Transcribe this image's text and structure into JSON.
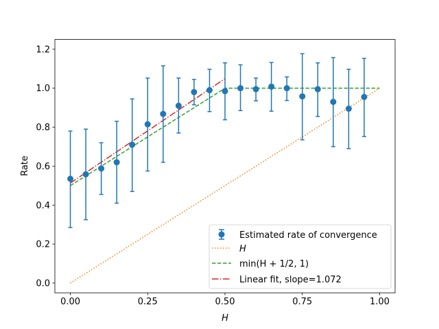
{
  "chart_data": {
    "type": "scatter",
    "title": "",
    "xlabel": "H",
    "ylabel": "Rate",
    "xlim": [
      -0.05,
      1.05
    ],
    "ylim": [
      -0.05,
      1.25
    ],
    "xticks": [
      0.0,
      0.25,
      0.5,
      0.75,
      1.0
    ],
    "xtick_labels": [
      "0.00",
      "0.25",
      "0.50",
      "0.75",
      "1.00"
    ],
    "yticks": [
      0.0,
      0.2,
      0.4,
      0.6,
      0.8,
      1.0,
      1.2
    ],
    "ytick_labels": [
      "0.0",
      "0.2",
      "0.4",
      "0.6",
      "0.8",
      "1.0",
      "1.2"
    ],
    "grid": false,
    "legend_position": "lower-right",
    "series": [
      {
        "name": "Estimated rate of convergence",
        "kind": "errorbar",
        "color": "#1f77b4",
        "x": [
          0.0,
          0.05,
          0.1,
          0.15,
          0.2,
          0.25,
          0.3,
          0.35,
          0.4,
          0.45,
          0.5,
          0.55,
          0.6,
          0.65,
          0.7,
          0.75,
          0.8,
          0.85,
          0.9,
          0.95
        ],
        "y": [
          0.535,
          0.558,
          0.588,
          0.62,
          0.71,
          0.815,
          0.868,
          0.91,
          0.98,
          0.99,
          0.985,
          1.0,
          0.995,
          1.008,
          1.0,
          0.958,
          0.995,
          0.93,
          0.895,
          0.955
        ],
        "yerr_low": [
          0.285,
          0.325,
          0.455,
          0.41,
          0.47,
          0.575,
          0.62,
          0.77,
          0.915,
          0.88,
          0.838,
          0.885,
          0.935,
          0.882,
          0.937,
          0.735,
          0.855,
          0.7,
          0.69,
          0.752
        ],
        "yerr_high": [
          0.78,
          0.79,
          0.72,
          0.83,
          0.945,
          1.052,
          1.115,
          1.052,
          1.045,
          1.097,
          1.13,
          1.12,
          1.052,
          1.132,
          1.058,
          1.177,
          1.13,
          1.157,
          1.097,
          1.153
        ]
      },
      {
        "name": "H",
        "name_label": "H",
        "kind": "line",
        "style": "dotted",
        "color": "#ff7f0e",
        "x": [
          0.0,
          1.0
        ],
        "y": [
          0.0,
          1.0
        ]
      },
      {
        "name": "min(H+1/2, 1)",
        "name_label": "min(H + 1/2, 1)",
        "kind": "line",
        "style": "dashed",
        "color": "#2ca02c",
        "x": [
          0.0,
          0.5,
          1.0
        ],
        "y": [
          0.5,
          1.0,
          1.0
        ]
      },
      {
        "name": "Linear fit, slope=1.072",
        "kind": "line",
        "style": "dashdot",
        "color": "#d62728",
        "x": [
          0.0,
          0.5
        ],
        "y": [
          0.513,
          1.049
        ]
      }
    ]
  }
}
